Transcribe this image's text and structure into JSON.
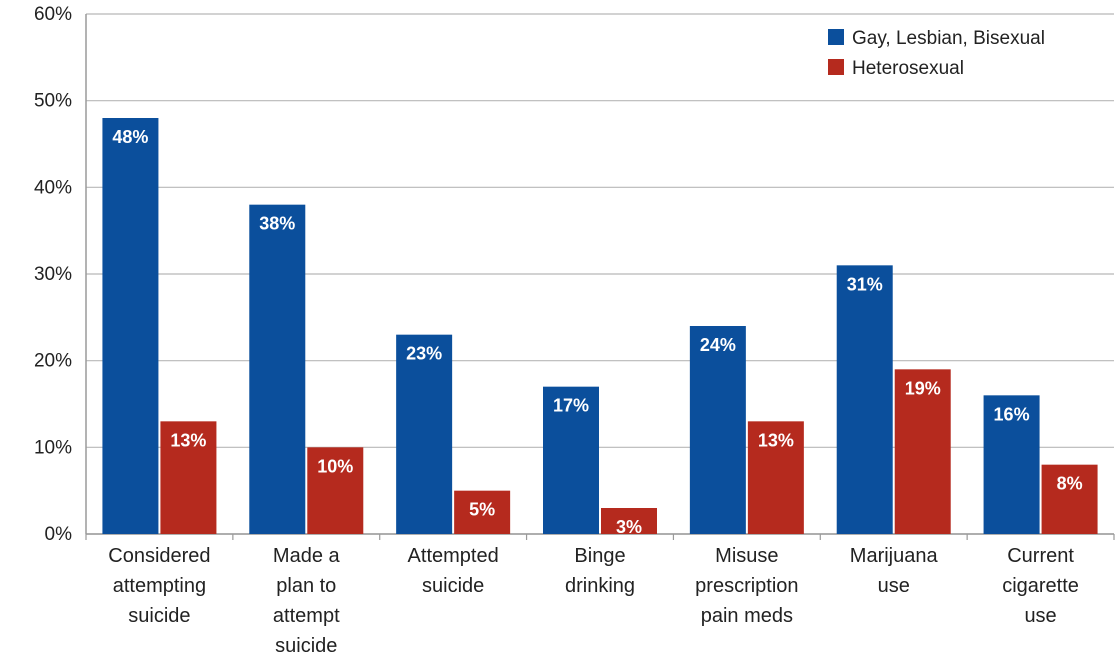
{
  "chart_data": {
    "type": "bar",
    "categories": [
      [
        "Considered",
        "attempting",
        "suicide"
      ],
      [
        "Made a",
        "plan to",
        "attempt",
        "suicide"
      ],
      [
        "Attempted",
        "suicide"
      ],
      [
        "Binge",
        "drinking"
      ],
      [
        "Misuse",
        "prescription",
        "pain meds"
      ],
      [
        "Marijuana",
        "use"
      ],
      [
        "Current",
        "cigarette",
        "use"
      ]
    ],
    "series": [
      {
        "name": "Gay, Lesbian, Bisexual",
        "color": "#0b4f9c",
        "values": [
          48,
          38,
          23,
          17,
          24,
          31,
          16
        ]
      },
      {
        "name": "Heterosexual",
        "color": "#b52a1e",
        "values": [
          13,
          10,
          5,
          3,
          13,
          19,
          8
        ]
      }
    ],
    "data_labels": [
      [
        "48%",
        "38%",
        "23%",
        "17%",
        "24%",
        "31%",
        "16%"
      ],
      [
        "13%",
        "10%",
        "5%",
        "3%",
        "13%",
        "19%",
        "8%"
      ]
    ],
    "yticks": [
      "0%",
      "10%",
      "20%",
      "30%",
      "40%",
      "50%",
      "60%"
    ],
    "ylim": [
      0,
      60
    ],
    "grid": true,
    "legend_position": "top-right",
    "title": "",
    "xlabel": "",
    "ylabel": ""
  }
}
